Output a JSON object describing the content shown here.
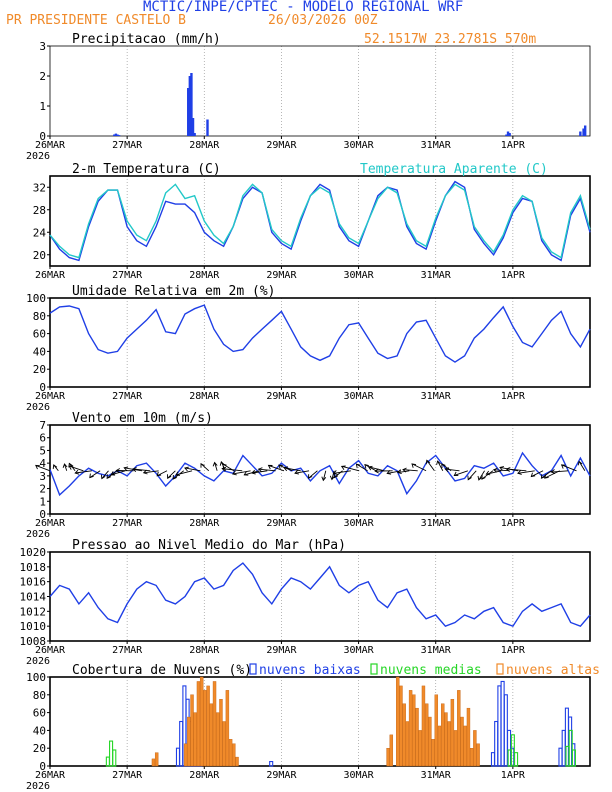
{
  "header": {
    "title": "MCTIC/INPE/CPTEC - MODELO REGIONAL WRF",
    "station": "PR PRESIDENTE CASTELO B",
    "date": "26/03/2026 00Z",
    "coords": "52.1517W 23.2781S 570m"
  },
  "colors": {
    "blue": "#1f3fe6",
    "cyan": "#22c8c8",
    "orange": "#f08a2a",
    "green": "#26d626",
    "black": "#000000"
  },
  "chart_data": [
    {
      "id": "precip",
      "type": "bar",
      "title": "Precipitacao (mm/h)",
      "ylim": [
        0,
        3
      ],
      "yticks": [
        0,
        1,
        2,
        3
      ],
      "x_unit": "hours since 26MAR 00Z",
      "xlim": [
        0,
        168
      ],
      "series": [
        {
          "name": "Precipitacao",
          "color": "#1f3fe6",
          "x": [
            20,
            20.5,
            21,
            21.5,
            43,
            43.5,
            44,
            44.5,
            45,
            49,
            142,
            142.5,
            143,
            165,
            166,
            166.5
          ],
          "values": [
            0.05,
            0.08,
            0.05,
            0.03,
            1.6,
            2.0,
            2.1,
            0.6,
            0.1,
            0.55,
            0.05,
            0.15,
            0.1,
            0.15,
            0.25,
            0.35
          ]
        }
      ]
    },
    {
      "id": "temp",
      "type": "line",
      "title": "2-m Temperatura (C)",
      "legend": "Temperatura Aparente (C)",
      "ylim": [
        18,
        34
      ],
      "yticks": [
        20,
        24,
        28,
        32
      ],
      "xlim": [
        0,
        168
      ],
      "series": [
        {
          "name": "Temperatura",
          "color": "#1f3fe6",
          "x": [
            0,
            3,
            6,
            9,
            12,
            15,
            18,
            21,
            24,
            27,
            30,
            33,
            36,
            39,
            42,
            45,
            48,
            51,
            54,
            57,
            60,
            63,
            66,
            69,
            72,
            75,
            78,
            81,
            84,
            87,
            90,
            93,
            96,
            99,
            102,
            105,
            108,
            111,
            114,
            117,
            120,
            123,
            126,
            129,
            132,
            135,
            138,
            141,
            144,
            147,
            150,
            153,
            156,
            159,
            162,
            165,
            168
          ],
          "values": [
            23.5,
            21,
            19.5,
            19,
            25,
            29.5,
            31.5,
            31.5,
            25,
            22.5,
            21.5,
            25,
            29.5,
            29,
            29,
            27.5,
            24,
            22.5,
            21.5,
            25,
            30,
            32,
            31,
            24,
            22,
            21,
            26,
            30.5,
            32.5,
            31.5,
            25,
            22.5,
            21.5,
            26,
            30.5,
            32,
            31.5,
            25,
            22,
            21,
            26,
            30.5,
            33,
            32,
            24.5,
            22,
            20,
            23,
            27.5,
            30,
            29.5,
            22.5,
            20,
            19,
            27,
            30,
            24
          ]
        },
        {
          "name": "Temperatura Aparente",
          "color": "#22c8c8",
          "x": [
            0,
            3,
            6,
            9,
            12,
            15,
            18,
            21,
            24,
            27,
            30,
            33,
            36,
            39,
            42,
            45,
            48,
            51,
            54,
            57,
            60,
            63,
            66,
            69,
            72,
            75,
            78,
            81,
            84,
            87,
            90,
            93,
            96,
            99,
            102,
            105,
            108,
            111,
            114,
            117,
            120,
            123,
            126,
            129,
            132,
            135,
            138,
            141,
            144,
            147,
            150,
            153,
            156,
            159,
            162,
            165,
            168
          ],
          "values": [
            23.5,
            21.5,
            20,
            19.5,
            25.5,
            30,
            31.5,
            31.5,
            26,
            23.5,
            22.5,
            26,
            31,
            32.5,
            30,
            30.5,
            26,
            23.5,
            22,
            25,
            30.5,
            32.5,
            31,
            24.5,
            22.5,
            21.5,
            26.5,
            30.5,
            32,
            31,
            25.5,
            23,
            22,
            26,
            30,
            32,
            31,
            25.5,
            22.5,
            21.5,
            26.5,
            30.5,
            32.5,
            31.5,
            25,
            22.5,
            20.5,
            23.5,
            28,
            30.5,
            29.5,
            23,
            20.5,
            19.5,
            27.5,
            30.5,
            24.5
          ]
        }
      ]
    },
    {
      "id": "humidity",
      "type": "line",
      "title": "Umidade Relativa em 2m (%)",
      "ylim": [
        0,
        100
      ],
      "yticks": [
        0,
        20,
        40,
        60,
        80,
        100
      ],
      "xlim": [
        0,
        168
      ],
      "series": [
        {
          "name": "Umidade Relativa",
          "color": "#1f3fe6",
          "x": [
            0,
            3,
            6,
            9,
            12,
            15,
            18,
            21,
            24,
            27,
            30,
            33,
            36,
            39,
            42,
            45,
            48,
            51,
            54,
            57,
            60,
            63,
            66,
            69,
            72,
            75,
            78,
            81,
            84,
            87,
            90,
            93,
            96,
            99,
            102,
            105,
            108,
            111,
            114,
            117,
            120,
            123,
            126,
            129,
            132,
            135,
            138,
            141,
            144,
            147,
            150,
            153,
            156,
            159,
            162,
            165,
            168
          ],
          "values": [
            83,
            90,
            91,
            88,
            60,
            42,
            38,
            40,
            55,
            65,
            75,
            87,
            62,
            60,
            82,
            88,
            92,
            65,
            48,
            40,
            42,
            55,
            65,
            75,
            85,
            65,
            45,
            35,
            30,
            35,
            55,
            70,
            72,
            55,
            38,
            32,
            35,
            60,
            73,
            75,
            55,
            35,
            28,
            35,
            55,
            65,
            78,
            90,
            68,
            50,
            45,
            60,
            75,
            85,
            60,
            45,
            65
          ]
        }
      ]
    },
    {
      "id": "wind",
      "type": "line",
      "title": "Vento em 10m (m/s)",
      "ylim": [
        0,
        7
      ],
      "yticks": [
        0,
        1,
        2,
        3,
        4,
        5,
        6,
        7
      ],
      "xlim": [
        0,
        168
      ],
      "series": [
        {
          "name": "Vento",
          "color": "#1f3fe6",
          "x": [
            0,
            3,
            6,
            9,
            12,
            15,
            18,
            21,
            24,
            27,
            30,
            33,
            36,
            39,
            42,
            45,
            48,
            51,
            54,
            57,
            60,
            63,
            66,
            69,
            72,
            75,
            78,
            81,
            84,
            87,
            90,
            93,
            96,
            99,
            102,
            105,
            108,
            111,
            114,
            117,
            120,
            123,
            126,
            129,
            132,
            135,
            138,
            141,
            144,
            147,
            150,
            153,
            156,
            159,
            162,
            165,
            168
          ],
          "values": [
            3.5,
            1.5,
            2.2,
            3.0,
            3.6,
            3.2,
            3.0,
            3.4,
            3.0,
            3.8,
            4.0,
            3.2,
            2.2,
            3.0,
            4.0,
            3.6,
            3.0,
            2.6,
            3.4,
            3.2,
            4.6,
            3.8,
            3.0,
            3.2,
            4.0,
            3.4,
            3.6,
            2.6,
            3.4,
            3.8,
            2.4,
            3.6,
            4.2,
            3.2,
            3.0,
            3.8,
            3.4,
            1.6,
            2.6,
            4.0,
            4.6,
            3.6,
            2.6,
            2.8,
            3.8,
            3.6,
            4.0,
            3.0,
            3.2,
            4.8,
            3.8,
            3.0,
            3.4,
            4.6,
            3.0,
            4.4,
            3.0
          ]
        }
      ]
    },
    {
      "id": "pressure",
      "type": "line",
      "title": "Pressao ao Nivel Medio do Mar (hPa)",
      "ylim": [
        1008,
        1020
      ],
      "yticks": [
        1008,
        1010,
        1012,
        1014,
        1016,
        1018,
        1020
      ],
      "xlim": [
        0,
        168
      ],
      "series": [
        {
          "name": "Pressao",
          "color": "#1f3fe6",
          "x": [
            0,
            3,
            6,
            9,
            12,
            15,
            18,
            21,
            24,
            27,
            30,
            33,
            36,
            39,
            42,
            45,
            48,
            51,
            54,
            57,
            60,
            63,
            66,
            69,
            72,
            75,
            78,
            81,
            84,
            87,
            90,
            93,
            96,
            99,
            102,
            105,
            108,
            111,
            114,
            117,
            120,
            123,
            126,
            129,
            132,
            135,
            138,
            141,
            144,
            147,
            150,
            153,
            156,
            159,
            162,
            165,
            168
          ],
          "values": [
            1014,
            1015.5,
            1015,
            1013,
            1014.5,
            1012.5,
            1011,
            1010.5,
            1013,
            1015,
            1016,
            1015.5,
            1013.5,
            1013,
            1014,
            1016,
            1016.5,
            1015,
            1015.5,
            1017.5,
            1018.5,
            1017,
            1014.5,
            1013,
            1015,
            1016.5,
            1016,
            1015,
            1016.5,
            1018,
            1015.5,
            1014.5,
            1015.5,
            1016,
            1013.5,
            1012.5,
            1014.5,
            1015,
            1012.5,
            1011,
            1011.5,
            1010,
            1010.5,
            1011.5,
            1011,
            1012,
            1012.5,
            1010.5,
            1010,
            1012,
            1013,
            1012,
            1012.5,
            1013,
            1010.5,
            1010,
            1011.5
          ]
        }
      ]
    },
    {
      "id": "clouds",
      "type": "bar",
      "title": "Cobertura de Nuvens (%)",
      "legend": [
        "nuvens baixas",
        "nuvens medias",
        "nuvens altas"
      ],
      "ylim": [
        0,
        100
      ],
      "yticks": [
        0,
        20,
        40,
        60,
        80,
        100
      ],
      "xlim": [
        0,
        168
      ],
      "series": [
        {
          "name": "nuvens baixas",
          "color": "#1f3fe6",
          "x": [
            40,
            41,
            42,
            43,
            44,
            45,
            46,
            47,
            69,
            138,
            139,
            140,
            141,
            142,
            143,
            144,
            159,
            160,
            161,
            162,
            163
          ],
          "values": [
            20,
            50,
            90,
            75,
            50,
            30,
            20,
            10,
            5,
            15,
            50,
            90,
            95,
            80,
            40,
            20,
            20,
            40,
            65,
            55,
            25
          ]
        },
        {
          "name": "nuvens medias",
          "color": "#26d626",
          "x": [
            18,
            19,
            20,
            143,
            144,
            145,
            161,
            162,
            163
          ],
          "values": [
            10,
            28,
            18,
            18,
            35,
            15,
            22,
            40,
            18
          ]
        },
        {
          "name": "nuvens altas",
          "color": "#f08a2a",
          "x": [
            32,
            33,
            42,
            43,
            44,
            45,
            46,
            47,
            48,
            49,
            50,
            51,
            52,
            53,
            54,
            55,
            56,
            57,
            58,
            105,
            106,
            108,
            109,
            110,
            111,
            112,
            113,
            114,
            115,
            116,
            117,
            118,
            119,
            120,
            121,
            122,
            123,
            124,
            125,
            126,
            127,
            128,
            129,
            130,
            131,
            132,
            133
          ],
          "values": [
            8,
            15,
            25,
            55,
            80,
            60,
            95,
            100,
            85,
            90,
            70,
            95,
            60,
            75,
            50,
            85,
            30,
            25,
            10,
            20,
            35,
            100,
            90,
            70,
            50,
            85,
            80,
            65,
            40,
            90,
            70,
            55,
            30,
            80,
            45,
            70,
            60,
            50,
            75,
            40,
            85,
            55,
            45,
            65,
            20,
            40,
            25
          ]
        }
      ]
    }
  ],
  "axis": {
    "day_labels": [
      "26MAR",
      "27MAR",
      "28MAR",
      "29MAR",
      "30MAR",
      "31MAR",
      "1APR"
    ],
    "day_hours": [
      0,
      24,
      48,
      72,
      96,
      120,
      144
    ],
    "year": "2026"
  }
}
